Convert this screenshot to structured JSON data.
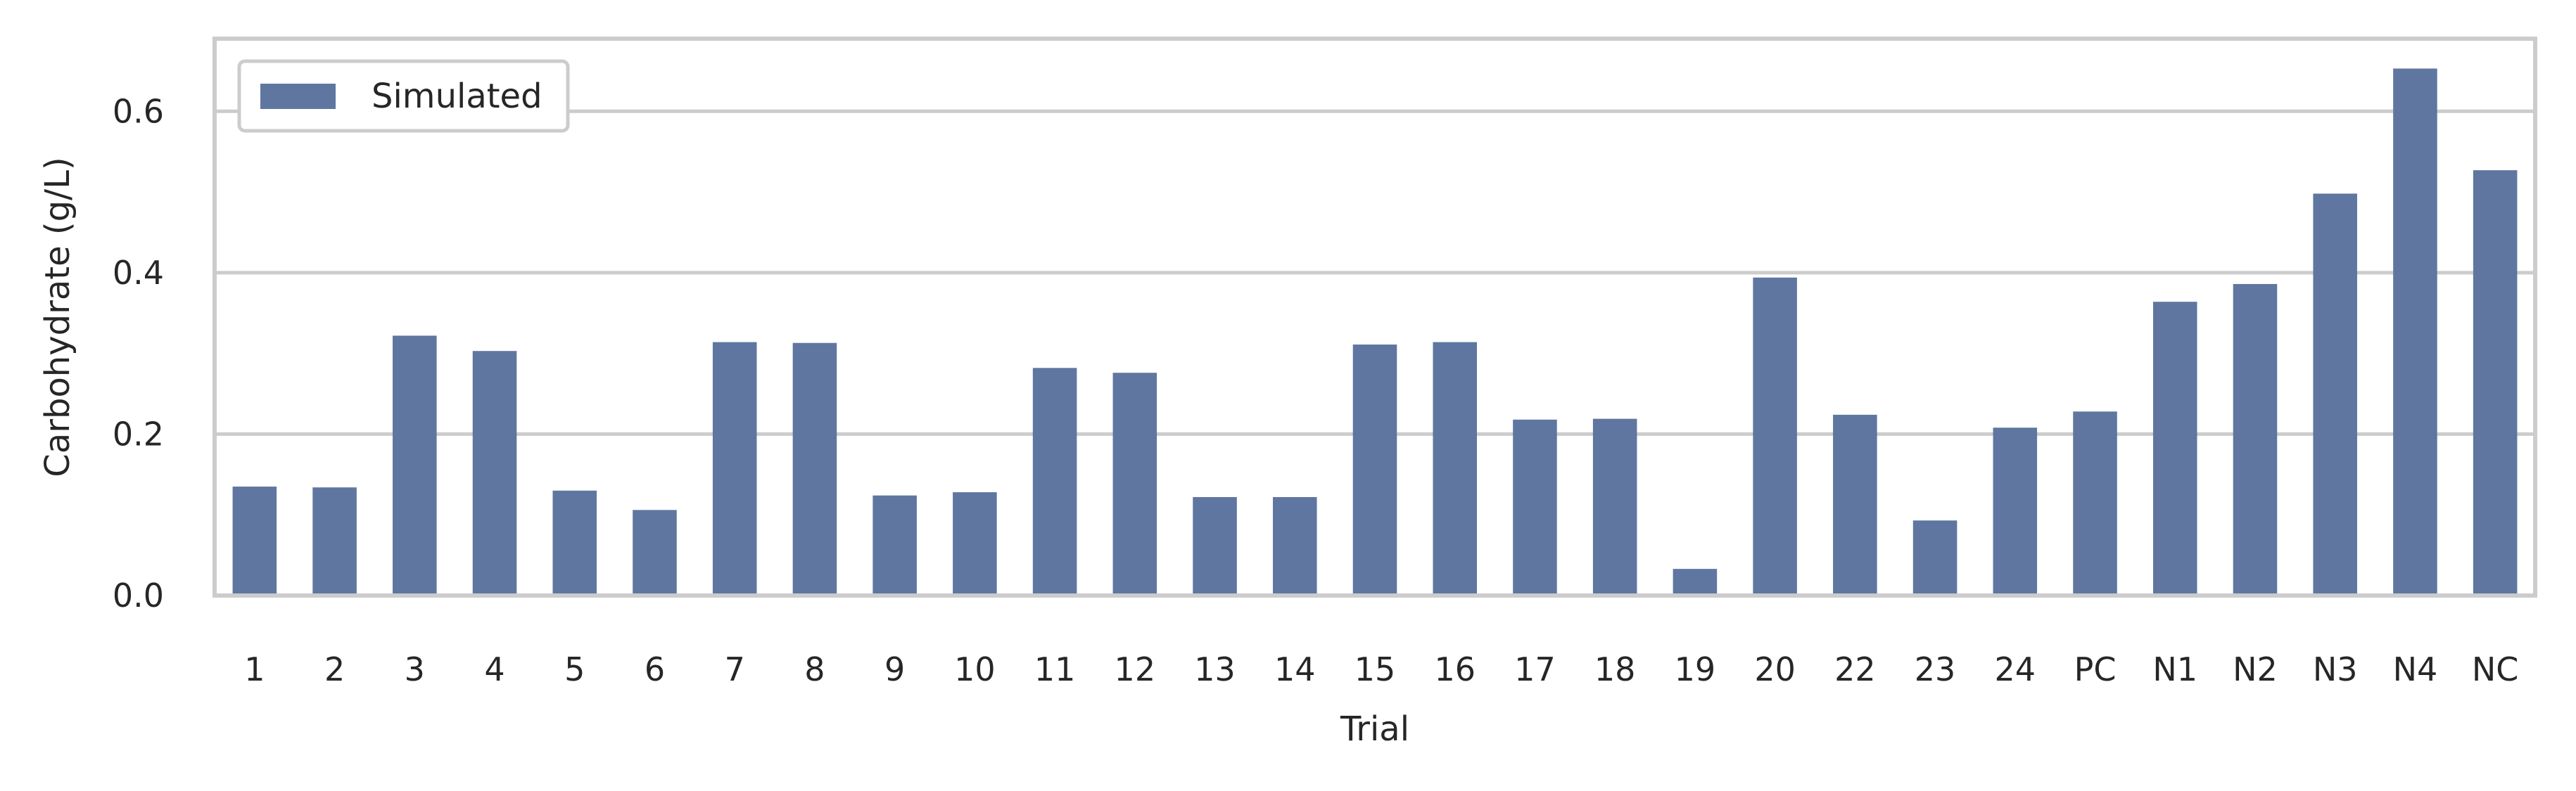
{
  "chart_data": {
    "type": "bar",
    "xlabel": "Trial",
    "ylabel": "Carbohydrate (g/L)",
    "ylim": [
      0,
      0.69
    ],
    "yticks": [
      0.0,
      0.2,
      0.4,
      0.6
    ],
    "ytick_labels": [
      "0.0",
      "0.2",
      "0.4",
      "0.6"
    ],
    "grid": true,
    "legend_position": "top-left",
    "categories": [
      "1",
      "2",
      "3",
      "4",
      "5",
      "6",
      "7",
      "8",
      "9",
      "10",
      "11",
      "12",
      "13",
      "14",
      "15",
      "16",
      "17",
      "18",
      "19",
      "20",
      "22",
      "23",
      "24",
      "PC",
      "N1",
      "N2",
      "N3",
      "N4",
      "NC"
    ],
    "series": [
      {
        "name": "Simulated",
        "color": "#5f76a0",
        "values": [
          0.135,
          0.134,
          0.322,
          0.303,
          0.13,
          0.106,
          0.314,
          0.313,
          0.124,
          0.128,
          0.282,
          0.276,
          0.122,
          0.122,
          0.311,
          0.314,
          0.218,
          0.219,
          0.033,
          0.394,
          0.224,
          0.093,
          0.208,
          0.228,
          0.364,
          0.386,
          0.498,
          0.653,
          0.527
        ]
      }
    ]
  }
}
